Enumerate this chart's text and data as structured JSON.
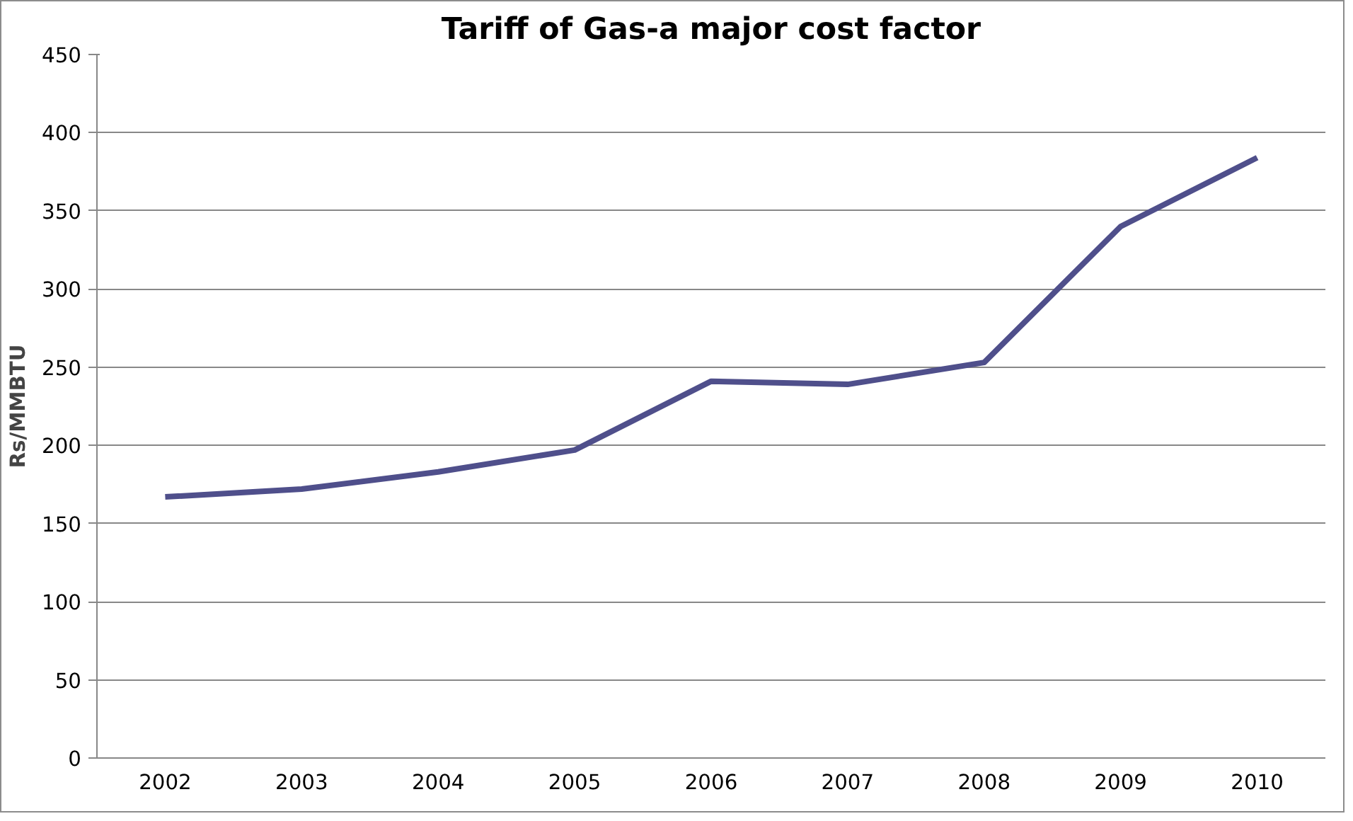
{
  "chart_data": {
    "type": "line",
    "title": "Tariff of Gas-a major cost factor",
    "ylabel": "Rs/MMBTU",
    "categories": [
      "2002",
      "2003",
      "2004",
      "2005",
      "2006",
      "2007",
      "2008",
      "2009",
      "2010"
    ],
    "series": [
      {
        "color": "#4f4f8b",
        "values": [
          167,
          172,
          183,
          197,
          241,
          239,
          253,
          340,
          384
        ]
      }
    ],
    "ylim": [
      0,
      450
    ],
    "yticks": [
      0,
      50,
      100,
      150,
      200,
      250,
      300,
      350,
      400,
      450
    ],
    "grid": "y",
    "marker": "none",
    "line_style": "solid"
  }
}
